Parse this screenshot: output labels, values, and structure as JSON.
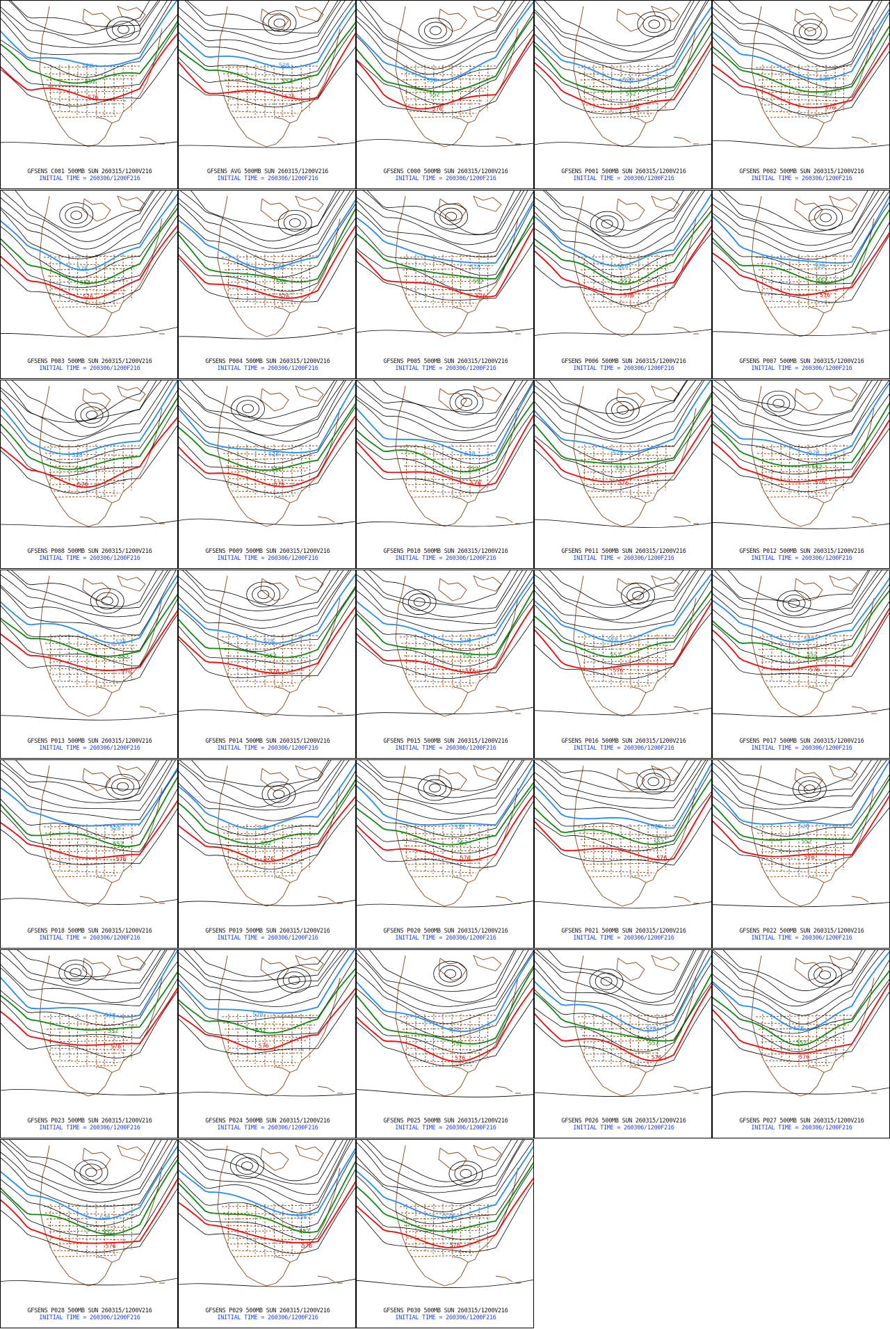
{
  "colors": {
    "contour": "#000000",
    "map": "#8b4513",
    "blue_528": "#1e8cff",
    "green_552": "#0a8a0a",
    "red_576": "#ff0000",
    "caption_top": "#111111",
    "caption_bottom": "#1e3cff"
  },
  "contour_labels": {
    "blue": "528",
    "green": "552",
    "red": "576"
  },
  "panels": [
    {
      "id": "C001",
      "line1": "GFSENS C001 500MB SUN 260315/1200V216",
      "line2": "INITIAL TIME = 260306/1200F216"
    },
    {
      "id": "AVG",
      "line1": "GFSENS AVG 500MB SUN 260315/1200V216",
      "line2": "INITIAL TIME = 260306/1200F216"
    },
    {
      "id": "C000",
      "line1": "GFSENS C000 500MB SUN 260315/1200V216",
      "line2": "INITIAL TIME = 260306/1200F216"
    },
    {
      "id": "P001",
      "line1": "GFSENS P001 500MB SUN 260315/1200V216",
      "line2": "INITIAL TIME = 260306/1200F216"
    },
    {
      "id": "P002",
      "line1": "GFSENS P002 500MB SUN 260315/1200V216",
      "line2": "INITIAL TIME = 260306/1200F216"
    },
    {
      "id": "P003",
      "line1": "GFSENS P003 500MB SUN 260315/1200V216",
      "line2": "INITIAL TIME = 260306/1200F216"
    },
    {
      "id": "P004",
      "line1": "GFSENS P004 500MB SUN 260315/1200V216",
      "line2": "INITIAL TIME = 260306/1200F216"
    },
    {
      "id": "P005",
      "line1": "GFSENS P005 500MB SUN 260315/1200V216",
      "line2": "INITIAL TIME = 260306/1200F216"
    },
    {
      "id": "P006",
      "line1": "GFSENS P006 500MB SUN 260315/1200V216",
      "line2": "INITIAL TIME = 260306/1200F216"
    },
    {
      "id": "P007",
      "line1": "GFSENS P007 500MB SUN 260315/1200V216",
      "line2": "INITIAL TIME = 260306/1200F216"
    },
    {
      "id": "P008",
      "line1": "GFSENS P008 500MB SUN 260315/1200V216",
      "line2": "INITIAL TIME = 260306/1200F216"
    },
    {
      "id": "P009",
      "line1": "GFSENS P009 500MB SUN 260315/1200V216",
      "line2": "INITIAL TIME = 260306/1200F216"
    },
    {
      "id": "P010",
      "line1": "GFSENS P010 500MB SUN 260315/1200V216",
      "line2": "INITIAL TIME = 260306/1200F216"
    },
    {
      "id": "P011",
      "line1": "GFSENS P011 500MB SUN 260315/1200V216",
      "line2": "INITIAL TIME = 260306/1200F216"
    },
    {
      "id": "P012",
      "line1": "GFSENS P012 500MB SUN 260315/1200V216",
      "line2": "INITIAL TIME = 260306/1200F216"
    },
    {
      "id": "P013",
      "line1": "GFSENS P013 500MB SUN 260315/1200V216",
      "line2": "INITIAL TIME = 260306/1200F216"
    },
    {
      "id": "P014",
      "line1": "GFSENS P014 500MB SUN 260315/1200V216",
      "line2": "INITIAL TIME = 260306/1200F216"
    },
    {
      "id": "P015",
      "line1": "GFSENS P015 500MB SUN 260315/1200V216",
      "line2": "INITIAL TIME = 260306/1200F216"
    },
    {
      "id": "P016",
      "line1": "GFSENS P016 500MB SUN 260315/1200V216",
      "line2": "INITIAL TIME = 260306/1200F216"
    },
    {
      "id": "P017",
      "line1": "GFSENS P017 500MB SUN 260315/1200V216",
      "line2": "INITIAL TIME = 260306/1200F216"
    },
    {
      "id": "P018",
      "line1": "GFSENS P018 500MB SUN 260315/1200V216",
      "line2": "INITIAL TIME = 260306/1200F216"
    },
    {
      "id": "P019",
      "line1": "GFSENS P019 500MB SUN 260315/1200V216",
      "line2": "INITIAL TIME = 260306/1200F216"
    },
    {
      "id": "P020",
      "line1": "GFSENS P020 500MB SUN 260315/1200V216",
      "line2": "INITIAL TIME = 260306/1200F216"
    },
    {
      "id": "P021",
      "line1": "GFSENS P021 500MB SUN 260315/1200V216",
      "line2": "INITIAL TIME = 260306/1200F216"
    },
    {
      "id": "P022",
      "line1": "GFSENS P022 500MB SUN 260315/1200V216",
      "line2": "INITIAL TIME = 260306/1200F216"
    },
    {
      "id": "P023",
      "line1": "GFSENS P023 500MB SUN 260315/1200V216",
      "line2": "INITIAL TIME = 260306/1200F216"
    },
    {
      "id": "P024",
      "line1": "GFSENS P024 500MB SUN 260315/1200V216",
      "line2": "INITIAL TIME = 260306/1200F216"
    },
    {
      "id": "P025",
      "line1": "GFSENS P025 500MB SUN 260315/1200V216",
      "line2": "INITIAL TIME = 260306/1200F216"
    },
    {
      "id": "P026",
      "line1": "GFSENS P026 500MB SUN 260315/1200V216",
      "line2": "INITIAL TIME = 260306/1200F216"
    },
    {
      "id": "P027",
      "line1": "GFSENS P027 500MB SUN 260315/1200V216",
      "line2": "INITIAL TIME = 260306/1200F216"
    },
    {
      "id": "P028",
      "line1": "GFSENS P028 500MB SUN 260315/1200V216",
      "line2": "INITIAL TIME = 260306/1200F216"
    },
    {
      "id": "P029",
      "line1": "GFSENS P029 500MB SUN 260315/1200V216",
      "line2": "INITIAL TIME = 260306/1200F216"
    },
    {
      "id": "P030",
      "line1": "GFSENS P030 500MB SUN 260315/1200V216",
      "line2": "INITIAL TIME = 260306/1200F216"
    }
  ]
}
